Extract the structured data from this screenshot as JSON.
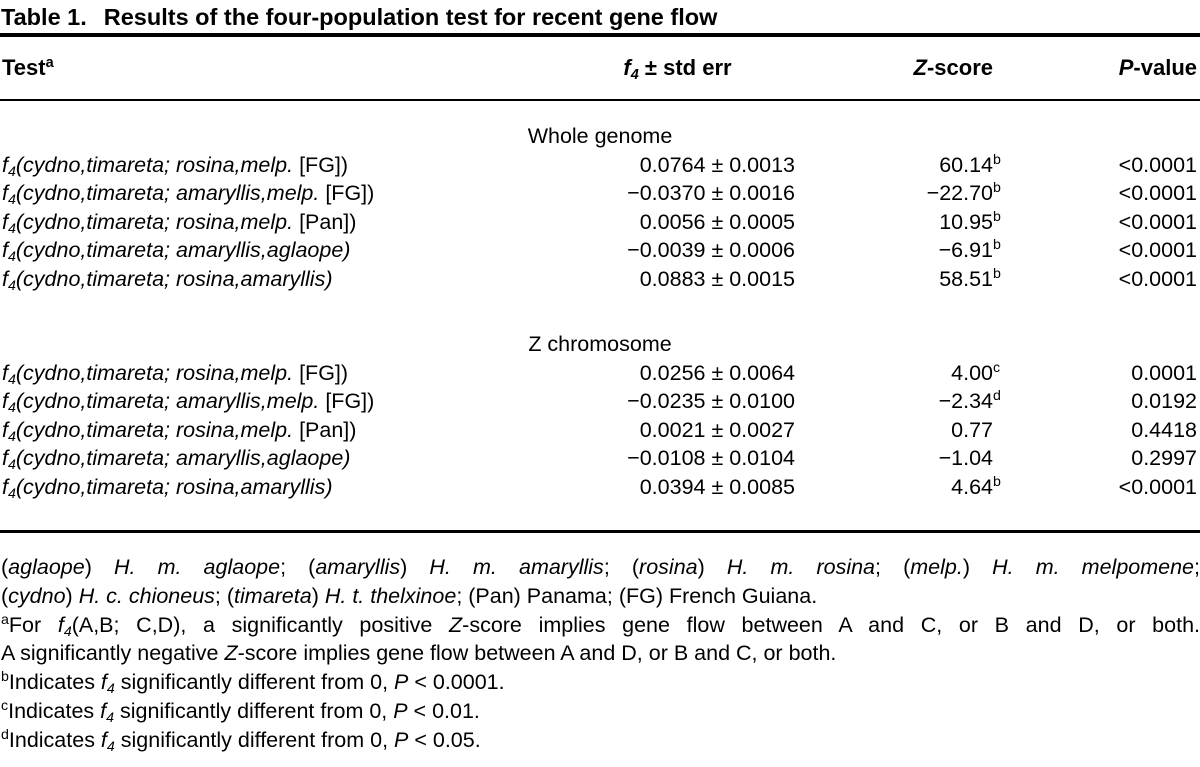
{
  "page": {
    "background": "#ffffff",
    "text_color": "#000000"
  },
  "table": {
    "title_label": "Table 1.",
    "title_text": "Results of the four-population test for recent gene flow",
    "header": {
      "test": "Test",
      "test_sup": "a",
      "f4_f": "f",
      "f4_sub": "4",
      "f4_rest": " ± std err",
      "z_it": "Z",
      "z_rest": "-score",
      "p_it": "P",
      "p_rest": "-value"
    },
    "row_prefix": {
      "f": "f",
      "sub": "4",
      "open": "("
    },
    "sections": [
      {
        "label": "Whole genome",
        "rows": [
          {
            "species": "cydno,timareta; rosina,melp.",
            "suffix": " [FG])",
            "f4": "0.0764 ± 0.0013",
            "z": "60.14",
            "z_sup": "b",
            "p": "<0.0001"
          },
          {
            "species": "cydno,timareta; amaryllis,melp.",
            "suffix": " [FG])",
            "f4": "−0.0370 ± 0.0016",
            "z": "−22.70",
            "z_sup": "b",
            "p": "<0.0001"
          },
          {
            "species": "cydno,timareta; rosina,melp.",
            "suffix": " [Pan])",
            "f4": "0.0056 ± 0.0005",
            "z": "10.95",
            "z_sup": "b",
            "p": "<0.0001"
          },
          {
            "species": "cydno,timareta; amaryllis,aglaope)",
            "suffix": "",
            "f4": "−0.0039 ± 0.0006",
            "z": "−6.91",
            "z_sup": "b",
            "p": "<0.0001"
          },
          {
            "species": "cydno,timareta; rosina,amaryllis)",
            "suffix": "",
            "f4": "0.0883 ± 0.0015",
            "z": "58.51",
            "z_sup": "b",
            "p": "<0.0001"
          }
        ]
      },
      {
        "label": "Z chromosome",
        "rows": [
          {
            "species": "cydno,timareta; rosina,melp.",
            "suffix": " [FG])",
            "f4": "0.0256 ± 0.0064",
            "z": "4.00",
            "z_sup": "c",
            "p": "0.0001"
          },
          {
            "species": "cydno,timareta; amaryllis,melp.",
            "suffix": " [FG])",
            "f4": "−0.0235 ± 0.0100",
            "z": "−2.34",
            "z_sup": "d",
            "p": "0.0192"
          },
          {
            "species": "cydno,timareta; rosina,melp.",
            "suffix": " [Pan])",
            "f4": "0.0021 ± 0.0027",
            "z": "0.77",
            "z_sup": "",
            "p": "0.4418"
          },
          {
            "species": "cydno,timareta; amaryllis,aglaope)",
            "suffix": "",
            "f4": "−0.0108 ± 0.0104",
            "z": "−1.04",
            "z_sup": "",
            "p": "0.2997"
          },
          {
            "species": "cydno,timareta; rosina,amaryllis)",
            "suffix": "",
            "f4": "0.0394 ± 0.0085",
            "z": "4.64",
            "z_sup": "b",
            "p": "<0.0001"
          }
        ]
      }
    ],
    "footnotes": [
      {
        "justify": true,
        "parts": [
          [
            "(",
            "r"
          ],
          [
            "aglaope",
            "i"
          ],
          [
            ") ",
            "r"
          ],
          [
            "H. m. aglaope",
            "i"
          ],
          [
            "; (",
            "r"
          ],
          [
            "amaryllis",
            "i"
          ],
          [
            ") ",
            "r"
          ],
          [
            "H. m. amaryllis",
            "i"
          ],
          [
            "; (",
            "r"
          ],
          [
            "rosina",
            "i"
          ],
          [
            ") ",
            "r"
          ],
          [
            "H. m. rosina",
            "i"
          ],
          [
            "; (",
            "r"
          ],
          [
            "melp.",
            "i"
          ],
          [
            ") ",
            "r"
          ],
          [
            "H. m. melpomene",
            "i"
          ],
          [
            ";",
            "r"
          ]
        ]
      },
      {
        "justify": false,
        "parts": [
          [
            "(",
            "r"
          ],
          [
            "cydno",
            "i"
          ],
          [
            ") ",
            "r"
          ],
          [
            "H. c. chioneus",
            "i"
          ],
          [
            "; (",
            "r"
          ],
          [
            "timareta",
            "i"
          ],
          [
            ") ",
            "r"
          ],
          [
            "H. t. thelxinoe",
            "i"
          ],
          [
            "; (Pan) Panama; (FG) French Guiana.",
            "r"
          ]
        ]
      },
      {
        "justify": true,
        "parts": [
          [
            "a",
            "sup"
          ],
          [
            "For ",
            "r"
          ],
          [
            "f",
            "i"
          ],
          [
            "4",
            "sub"
          ],
          [
            "(A,B; C,D), a significantly positive ",
            "r"
          ],
          [
            "Z",
            "i"
          ],
          [
            "-score implies gene flow between A and C, or B and D, or both.",
            "r"
          ]
        ]
      },
      {
        "justify": false,
        "parts": [
          [
            "A significantly negative ",
            "r"
          ],
          [
            "Z",
            "i"
          ],
          [
            "-score implies gene flow between A and D, or B and C, or both.",
            "r"
          ]
        ]
      },
      {
        "justify": false,
        "parts": [
          [
            "b",
            "sup"
          ],
          [
            "Indicates ",
            "r"
          ],
          [
            "f",
            "i"
          ],
          [
            "4",
            "sub"
          ],
          [
            " significantly different from 0, ",
            "r"
          ],
          [
            "P",
            "i"
          ],
          [
            " < 0.0001.",
            "r"
          ]
        ]
      },
      {
        "justify": false,
        "parts": [
          [
            "c",
            "sup"
          ],
          [
            "Indicates ",
            "r"
          ],
          [
            "f",
            "i"
          ],
          [
            "4",
            "sub"
          ],
          [
            " significantly different from 0, ",
            "r"
          ],
          [
            "P",
            "i"
          ],
          [
            " < 0.01.",
            "r"
          ]
        ]
      },
      {
        "justify": false,
        "parts": [
          [
            "d",
            "sup"
          ],
          [
            "Indicates ",
            "r"
          ],
          [
            "f",
            "i"
          ],
          [
            "4",
            "sub"
          ],
          [
            " significantly different from 0, ",
            "r"
          ],
          [
            "P",
            "i"
          ],
          [
            " < 0.05.",
            "r"
          ]
        ]
      }
    ]
  }
}
